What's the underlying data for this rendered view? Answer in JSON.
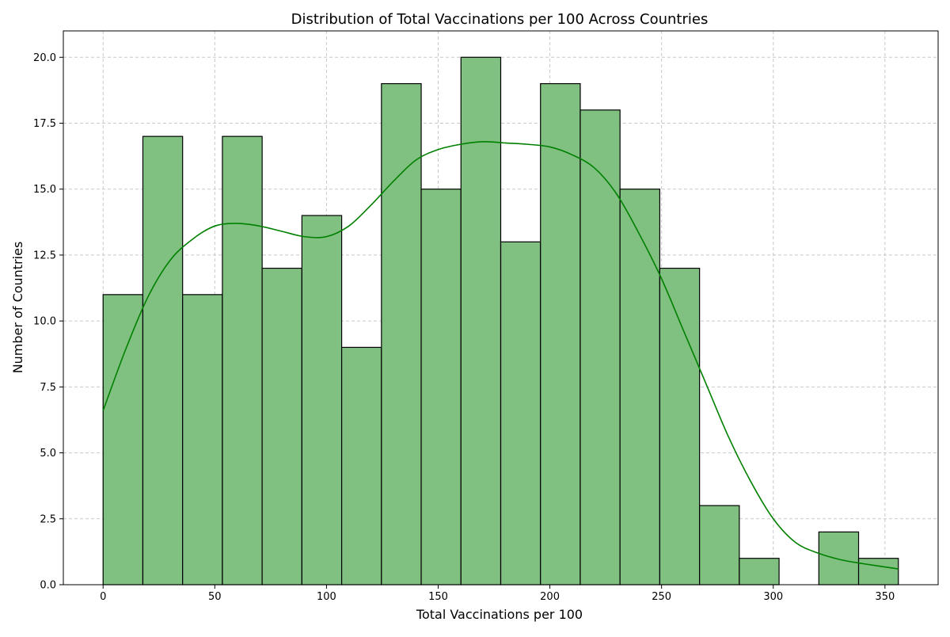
{
  "chart_data": {
    "type": "bar",
    "title": "Distribution of Total Vaccinations per 100 Across Countries",
    "xlabel": "Total Vaccinations per 100",
    "ylabel": "Number of Countries",
    "xlim": [
      -17.8,
      373.8
    ],
    "ylim": [
      0,
      21
    ],
    "xticks": [
      0,
      50,
      100,
      150,
      200,
      250,
      300,
      350
    ],
    "yticks": [
      0,
      2.5,
      5,
      7.5,
      10,
      12.5,
      15,
      17.5,
      20
    ],
    "ytick_labels": [
      "0.0",
      "2.5",
      "5.0",
      "7.5",
      "10.0",
      "12.5",
      "15.0",
      "17.5",
      "20.0"
    ],
    "grid": true,
    "bar_color": "#80c080",
    "bar_edge_color": "#000000",
    "kde_color": "#008000",
    "bins": [
      {
        "x0": 0.0,
        "x1": 17.8,
        "count": 11
      },
      {
        "x0": 17.8,
        "x1": 35.6,
        "count": 17
      },
      {
        "x0": 35.6,
        "x1": 53.4,
        "count": 11
      },
      {
        "x0": 53.4,
        "x1": 71.2,
        "count": 17
      },
      {
        "x0": 71.2,
        "x1": 89.0,
        "count": 12
      },
      {
        "x0": 89.0,
        "x1": 106.8,
        "count": 14
      },
      {
        "x0": 106.8,
        "x1": 124.6,
        "count": 9
      },
      {
        "x0": 124.6,
        "x1": 142.4,
        "count": 19
      },
      {
        "x0": 142.4,
        "x1": 160.2,
        "count": 15
      },
      {
        "x0": 160.2,
        "x1": 178.0,
        "count": 20
      },
      {
        "x0": 178.0,
        "x1": 195.8,
        "count": 13
      },
      {
        "x0": 195.8,
        "x1": 213.6,
        "count": 19
      },
      {
        "x0": 213.6,
        "x1": 231.4,
        "count": 18
      },
      {
        "x0": 231.4,
        "x1": 249.2,
        "count": 15
      },
      {
        "x0": 249.2,
        "x1": 267.0,
        "count": 12
      },
      {
        "x0": 267.0,
        "x1": 284.8,
        "count": 3
      },
      {
        "x0": 284.8,
        "x1": 302.6,
        "count": 1
      },
      {
        "x0": 302.6,
        "x1": 320.4,
        "count": 0
      },
      {
        "x0": 320.4,
        "x1": 338.2,
        "count": 2
      },
      {
        "x0": 338.2,
        "x1": 356.0,
        "count": 1
      }
    ],
    "kde": {
      "x": [
        0,
        10,
        20,
        30,
        40,
        50,
        60,
        70,
        80,
        90,
        100,
        110,
        120,
        130,
        140,
        150,
        160,
        170,
        180,
        190,
        200,
        210,
        220,
        230,
        240,
        250,
        260,
        270,
        280,
        290,
        300,
        310,
        320,
        330,
        340,
        356
      ],
      "y": [
        6.6,
        8.9,
        10.9,
        12.3,
        13.1,
        13.6,
        13.7,
        13.6,
        13.4,
        13.2,
        13.2,
        13.6,
        14.4,
        15.3,
        16.1,
        16.5,
        16.7,
        16.8,
        16.75,
        16.7,
        16.6,
        16.3,
        15.8,
        14.8,
        13.3,
        11.6,
        9.6,
        7.6,
        5.6,
        3.9,
        2.5,
        1.6,
        1.2,
        0.95,
        0.8,
        0.6
      ]
    }
  }
}
